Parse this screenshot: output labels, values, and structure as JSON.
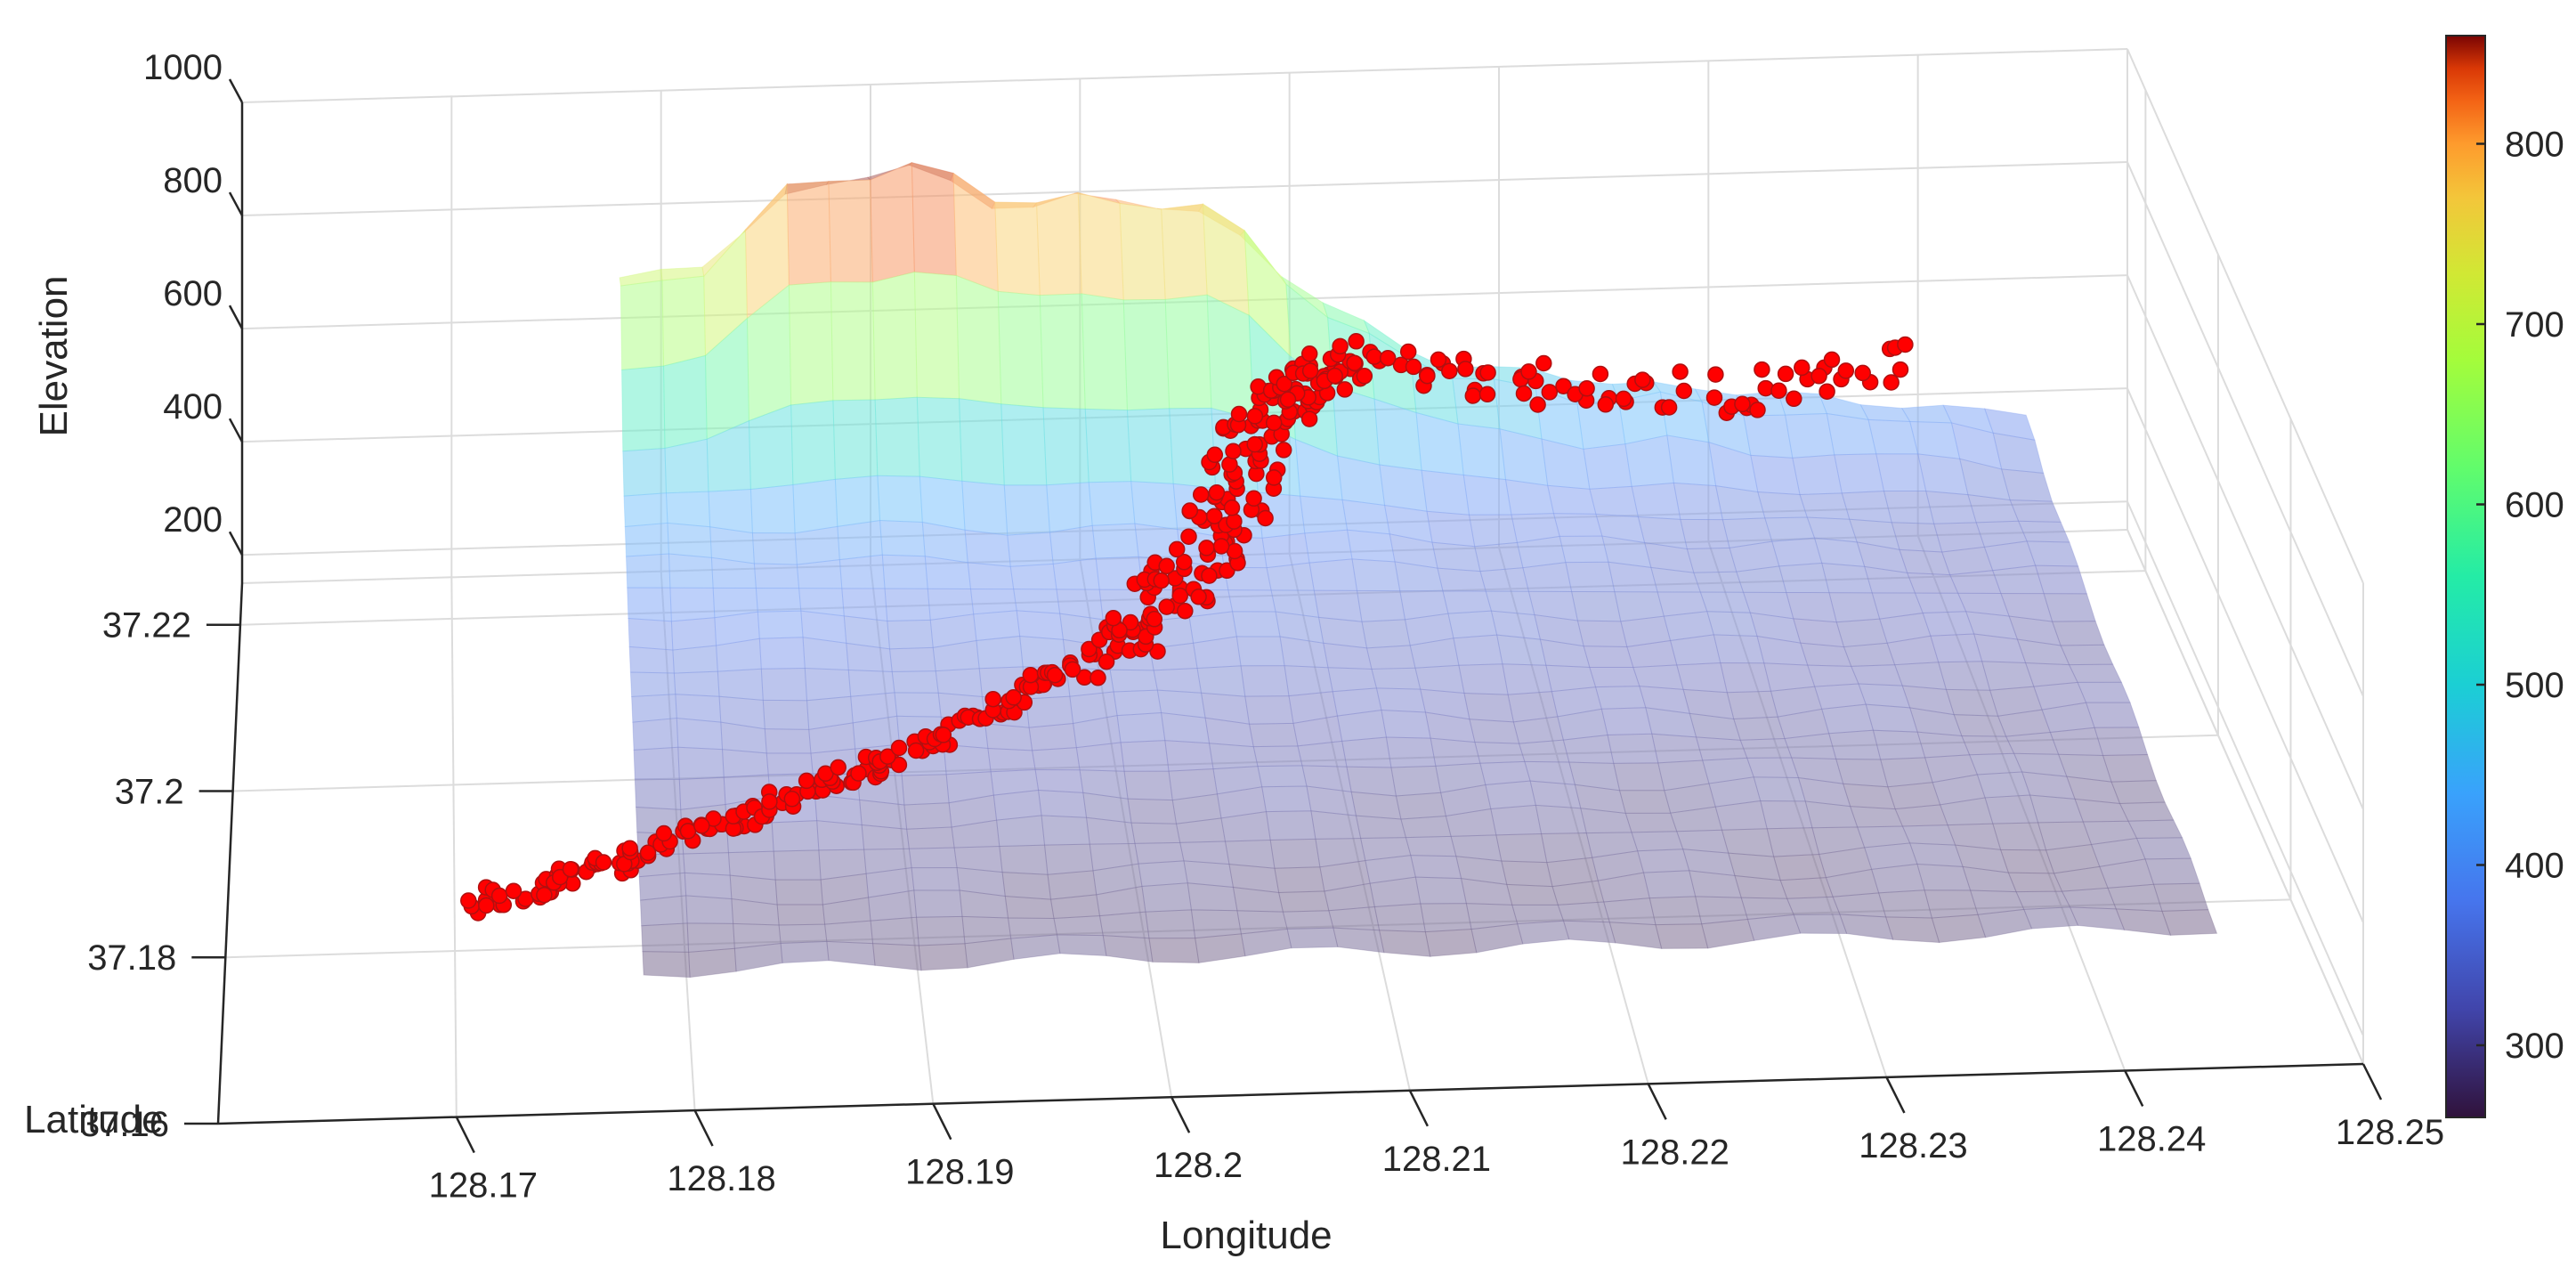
{
  "chart_data": {
    "type": "scatter",
    "variant": "3d-surface-with-scatter",
    "xlabel": "Longitude",
    "ylabel": "Latitude",
    "zlabel": "Elevation",
    "xticks": [
      "128.17",
      "128.18",
      "128.19",
      "128.2",
      "128.21",
      "128.22",
      "128.23",
      "128.24",
      "128.25"
    ],
    "yticks": [
      "37.16",
      "37.18",
      "37.2",
      "37.22"
    ],
    "zticks": [
      "200",
      "400",
      "600",
      "800",
      "1000"
    ],
    "xlim": [
      128.16,
      128.25
    ],
    "ylim": [
      37.16,
      37.225
    ],
    "zlim": [
      150,
      1000
    ],
    "grid": true,
    "colorbar": {
      "colormap": "turbo",
      "limits": [
        260,
        860
      ],
      "ticks": [
        "300",
        "400",
        "500",
        "600",
        "700",
        "800"
      ],
      "position": "right"
    },
    "surface": {
      "description_of_shape": "terrain surface; ridge along the back (north) edge with two peaks, lower valley terrain toward the front and east",
      "peaks": [
        {
          "lon": 128.19,
          "lat": 37.222,
          "elevation": 850
        },
        {
          "lon": 128.204,
          "lat": 37.222,
          "elevation": 830
        }
      ],
      "min_elevation": 260
    },
    "scatter_series": {
      "color": "#ff0000",
      "path": [
        {
          "lon": 128.171,
          "lat": 37.175,
          "elevation": 300
        },
        {
          "lon": 128.18,
          "lat": 37.182,
          "elevation": 310
        },
        {
          "lon": 128.19,
          "lat": 37.19,
          "elevation": 330
        },
        {
          "lon": 128.2,
          "lat": 37.2,
          "elevation": 360
        },
        {
          "lon": 128.205,
          "lat": 37.208,
          "elevation": 420
        },
        {
          "lon": 128.208,
          "lat": 37.216,
          "elevation": 520
        },
        {
          "lon": 128.212,
          "lat": 37.222,
          "elevation": 540
        },
        {
          "lon": 128.22,
          "lat": 37.223,
          "elevation": 470
        },
        {
          "lon": 128.23,
          "lat": 37.223,
          "elevation": 440
        },
        {
          "lon": 128.24,
          "lat": 37.224,
          "elevation": 480
        }
      ]
    }
  }
}
